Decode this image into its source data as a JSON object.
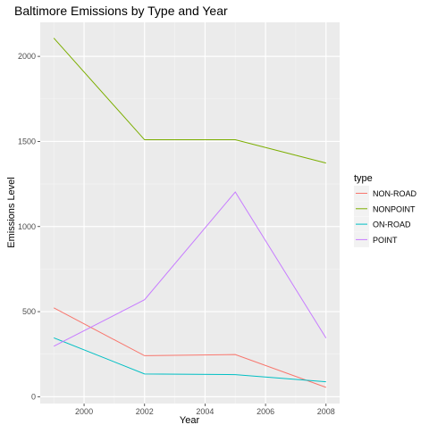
{
  "chart_data": {
    "type": "line",
    "title": "Baltimore Emissions by Type and Year",
    "xlabel": "Year",
    "ylabel": "Emissions Level",
    "xlim": [
      1998.55,
      2008.45
    ],
    "ylim": [
      -40,
      2200
    ],
    "x_ticks": [
      2000,
      2002,
      2004,
      2006,
      2008
    ],
    "x_tick_labels": [
      "2000",
      "2002",
      "2004",
      "2006",
      "2008"
    ],
    "y_ticks": [
      0,
      500,
      1000,
      1500,
      2000
    ],
    "y_tick_labels": [
      "0",
      "500",
      "1000",
      "1500",
      "2000"
    ],
    "grid": true,
    "legend_title": "type",
    "legend_position": "right",
    "x": [
      1999,
      2002,
      2005,
      2008
    ],
    "series": [
      {
        "name": "NON-ROAD",
        "color": "#F8766D",
        "values": [
          522,
          241,
          248,
          55
        ]
      },
      {
        "name": "NONPOINT",
        "color": "#7CAE00",
        "values": [
          2107,
          1510,
          1510,
          1373
        ]
      },
      {
        "name": "ON-ROAD",
        "color": "#00BFC4",
        "values": [
          346,
          134,
          130,
          88
        ]
      },
      {
        "name": "POINT",
        "color": "#C77CFF",
        "values": [
          297,
          570,
          1203,
          345
        ]
      }
    ]
  }
}
